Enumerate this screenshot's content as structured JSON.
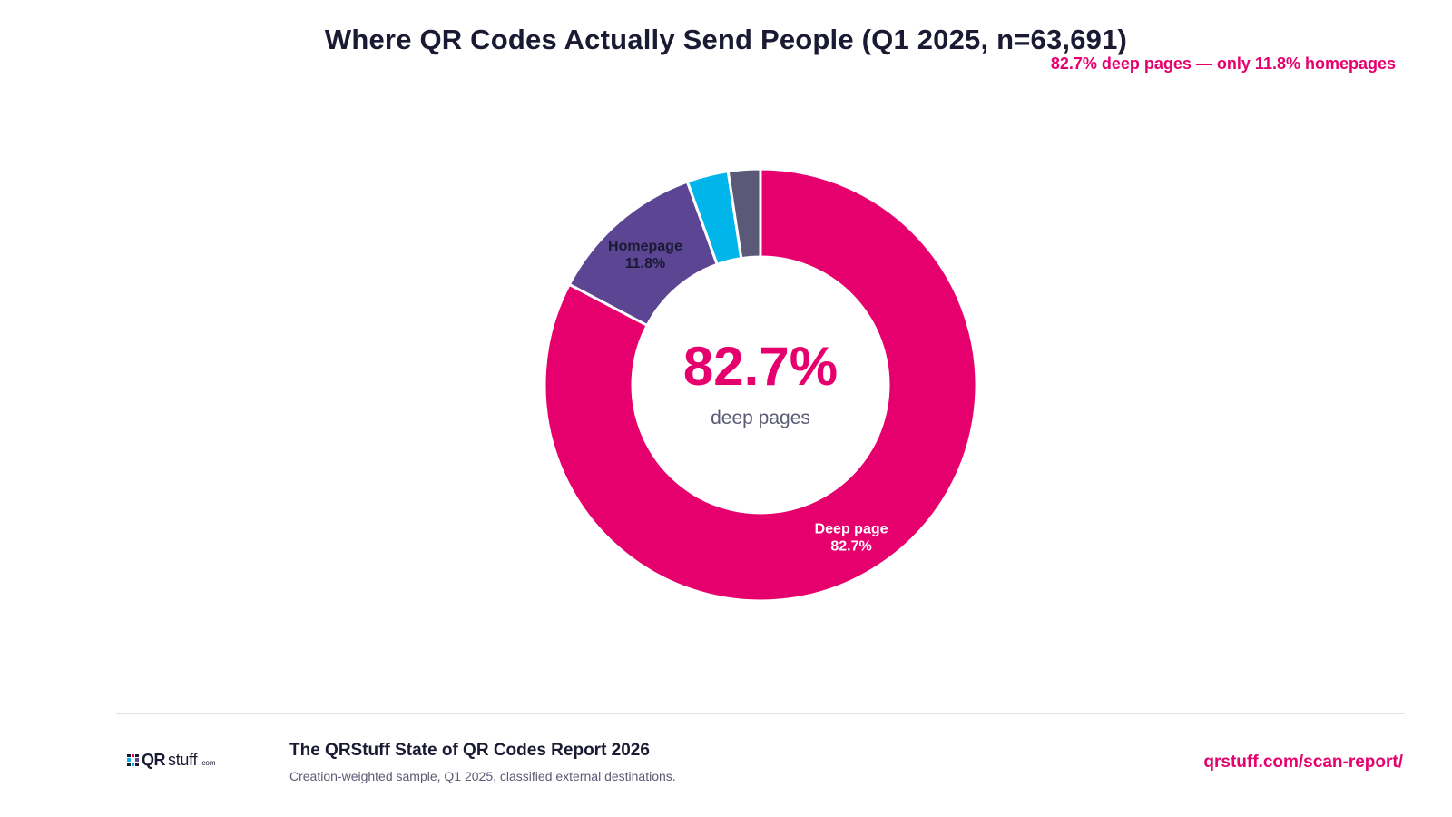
{
  "header": {
    "title": "Where QR Codes Actually Send People (Q1 2025, n=63,691)",
    "subtitle": "82.7% deep pages — only 11.8% homepages"
  },
  "chart_data": {
    "type": "pie",
    "donut": true,
    "slices": [
      {
        "label": "Deep page",
        "value": 82.7,
        "value_label": "82.7%",
        "color": "#e6006e",
        "label_color": "#ffffff"
      },
      {
        "label": "Homepage",
        "value": 11.8,
        "value_label": "11.8%",
        "color": "#5c4593",
        "label_color": "#1a1a33"
      },
      {
        "label": "",
        "value": 3.1,
        "value_label": "",
        "color": "#00b5ea",
        "label_color": "#1a1a33"
      },
      {
        "label": "",
        "value": 2.4,
        "value_label": "",
        "color": "#5a5a78",
        "label_color": "#1a1a33"
      }
    ],
    "center_value": "82.7%",
    "center_label": "deep pages",
    "center_value_color": "#e6006e",
    "center_label_color": "#5b5b75"
  },
  "footer": {
    "logo_qr": "QR",
    "logo_stuff": "stuff",
    "logo_com": ".com",
    "report_title": "The QRStuff State of QR Codes Report 2026",
    "report_note": "Creation-weighted sample, Q1 2025, classified external destinations.",
    "link": "qrstuff.com/scan-report/"
  },
  "colors": {
    "accent": "#e6006e",
    "text": "#1a1a33",
    "muted": "#5b5b75",
    "divider": "#e2e2e8"
  }
}
